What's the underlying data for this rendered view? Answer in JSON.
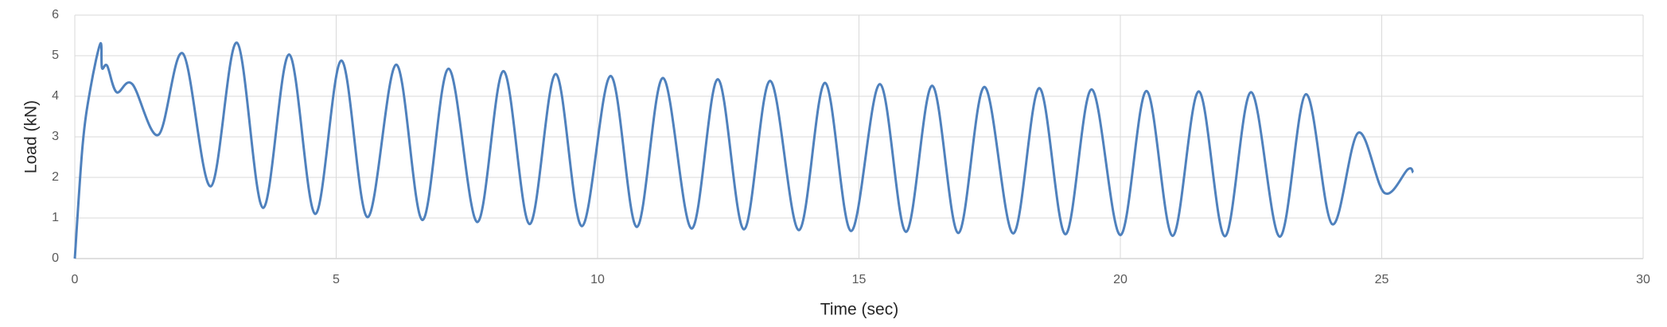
{
  "chart_data": {
    "type": "line",
    "xlabel": "Time (sec)",
    "ylabel": "Load (kN)",
    "xlim": [
      0,
      30
    ],
    "xticks": [
      0,
      5,
      10,
      15,
      20,
      25,
      30
    ],
    "ylim": [
      0,
      6
    ],
    "yticks": [
      0,
      1,
      2,
      3,
      4,
      5,
      6
    ],
    "grid": true,
    "x": [
      0,
      0.15,
      0.3,
      0.49,
      0.52,
      0.62,
      0.8,
      1.1,
      1.6,
      2.07,
      2.6,
      3.1,
      3.6,
      4.1,
      4.6,
      5.1,
      5.6,
      6.15,
      6.65,
      7.15,
      7.7,
      8.2,
      8.7,
      9.2,
      9.7,
      10.25,
      10.75,
      11.25,
      11.8,
      12.3,
      12.8,
      13.3,
      13.85,
      14.35,
      14.85,
      15.4,
      15.9,
      16.4,
      16.9,
      17.4,
      17.95,
      18.45,
      18.95,
      19.45,
      20.0,
      20.5,
      21.0,
      21.5,
      22.0,
      22.5,
      23.05,
      23.55,
      24.05,
      24.55,
      25.05,
      25.5,
      25.6
    ],
    "series": [
      {
        "name": "Load",
        "color": "#4f81bd",
        "values": [
          0,
          2.8,
          4.2,
          5.3,
          4.7,
          4.75,
          4.1,
          4.3,
          3.05,
          5.05,
          1.78,
          5.32,
          1.25,
          5.03,
          1.1,
          4.88,
          1.02,
          4.78,
          0.95,
          4.68,
          0.9,
          4.62,
          0.85,
          4.55,
          0.8,
          4.5,
          0.78,
          4.45,
          0.74,
          4.42,
          0.72,
          4.38,
          0.7,
          4.33,
          0.68,
          4.3,
          0.66,
          4.26,
          0.63,
          4.23,
          0.62,
          4.2,
          0.6,
          4.17,
          0.58,
          4.13,
          0.56,
          4.12,
          0.55,
          4.1,
          0.54,
          4.05,
          0.85,
          3.1,
          1.62,
          2.2,
          2.12
        ]
      }
    ]
  }
}
